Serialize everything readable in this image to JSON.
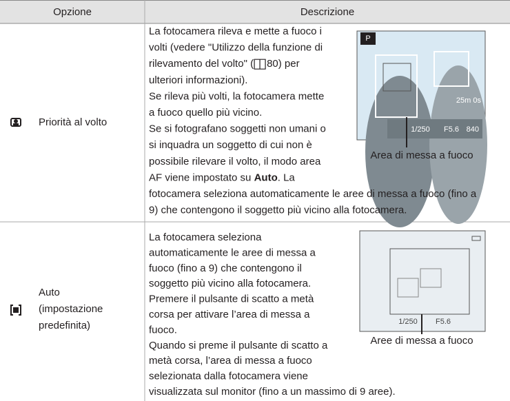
{
  "header": {
    "option": "Opzione",
    "description": "Descrizione"
  },
  "rows": [
    {
      "option": [
        "Priorità al volto"
      ],
      "lines": [
        "La fotocamera rileva e mette a fuoco i",
        "volti (vedere \"Utilizzo della funzione di",
        {
          "before": "rilevamento del volto\" (",
          "after": "80) per"
        },
        "ulteriori informazioni).",
        "Se rileva più volti, la fotocamera mette",
        "a fuoco quello più vicino.",
        "Se si fotografano soggetti non umani o",
        "si inquadra un soggetto di cui non è",
        "possibile rilevare il volto, il modo area",
        {
          "before": "AF viene impostato su ",
          "bold": "Auto",
          "after": ". La"
        },
        "fotocamera seleziona automaticamente le aree di messa a fuoco (fino a",
        "9) che contengono il soggetto più vicino alla fotocamera."
      ],
      "screen": [
        "P",
        "25m 0s",
        "1/250",
        "F5.6",
        "840"
      ],
      "caption": "Area di messa a fuoco"
    },
    {
      "option": [
        "Auto",
        "(impostazione",
        "predefinita)"
      ],
      "lines": [
        "La fotocamera seleziona",
        "automaticamente le aree di messa a",
        "fuoco (fino a 9) che contengono il",
        "soggetto più vicino alla fotocamera.",
        "Premere il pulsante di scatto a metà",
        "corsa per attivare l’area di messa a",
        "fuoco.",
        "Quando si preme il pulsante di scatto a",
        "metà corsa, l’area di messa a fuoco",
        "selezionata dalla fotocamera viene",
        "visualizzata sul monitor (fino a un massimo di 9 aree)."
      ],
      "screen": [
        "1/250",
        "F5.6"
      ],
      "caption": "Aree di messa a fuoco"
    }
  ]
}
